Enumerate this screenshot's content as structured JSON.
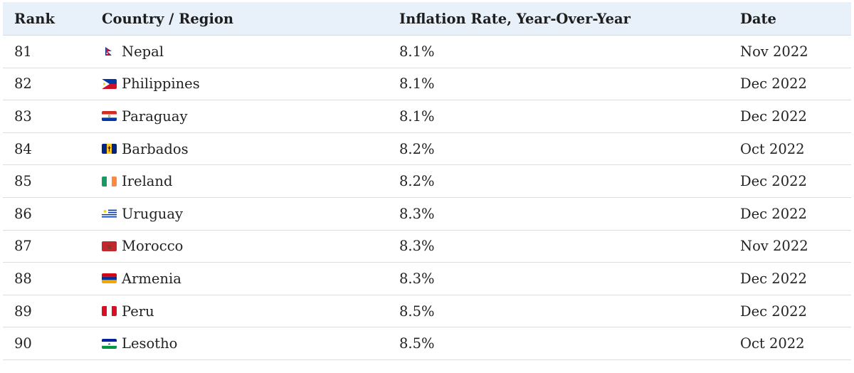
{
  "table": {
    "headers": {
      "rank": "Rank",
      "country": "Country / Region",
      "rate": "Inflation Rate, Year-Over-Year",
      "date": "Date"
    },
    "rows": [
      {
        "rank": "81",
        "country": "Nepal",
        "flag": "nepal-flag-icon",
        "rate": "8.1%",
        "date": "Nov 2022"
      },
      {
        "rank": "82",
        "country": "Philippines",
        "flag": "philippines-flag-icon",
        "rate": "8.1%",
        "date": "Dec 2022"
      },
      {
        "rank": "83",
        "country": "Paraguay",
        "flag": "paraguay-flag-icon",
        "rate": "8.1%",
        "date": "Dec 2022"
      },
      {
        "rank": "84",
        "country": "Barbados",
        "flag": "barbados-flag-icon",
        "rate": "8.2%",
        "date": "Oct 2022"
      },
      {
        "rank": "85",
        "country": "Ireland",
        "flag": "ireland-flag-icon",
        "rate": "8.2%",
        "date": "Dec 2022"
      },
      {
        "rank": "86",
        "country": "Uruguay",
        "flag": "uruguay-flag-icon",
        "rate": "8.3%",
        "date": "Dec 2022"
      },
      {
        "rank": "87",
        "country": "Morocco",
        "flag": "morocco-flag-icon",
        "rate": "8.3%",
        "date": "Nov 2022"
      },
      {
        "rank": "88",
        "country": "Armenia",
        "flag": "armenia-flag-icon",
        "rate": "8.3%",
        "date": "Dec 2022"
      },
      {
        "rank": "89",
        "country": "Peru",
        "flag": "peru-flag-icon",
        "rate": "8.5%",
        "date": "Dec 2022"
      },
      {
        "rank": "90",
        "country": "Lesotho",
        "flag": "lesotho-flag-icon",
        "rate": "8.5%",
        "date": "Oct 2022"
      }
    ]
  },
  "colors": {
    "header_background": "#e8f0fa",
    "row_divider": "#dddddd",
    "text": "#222222"
  }
}
